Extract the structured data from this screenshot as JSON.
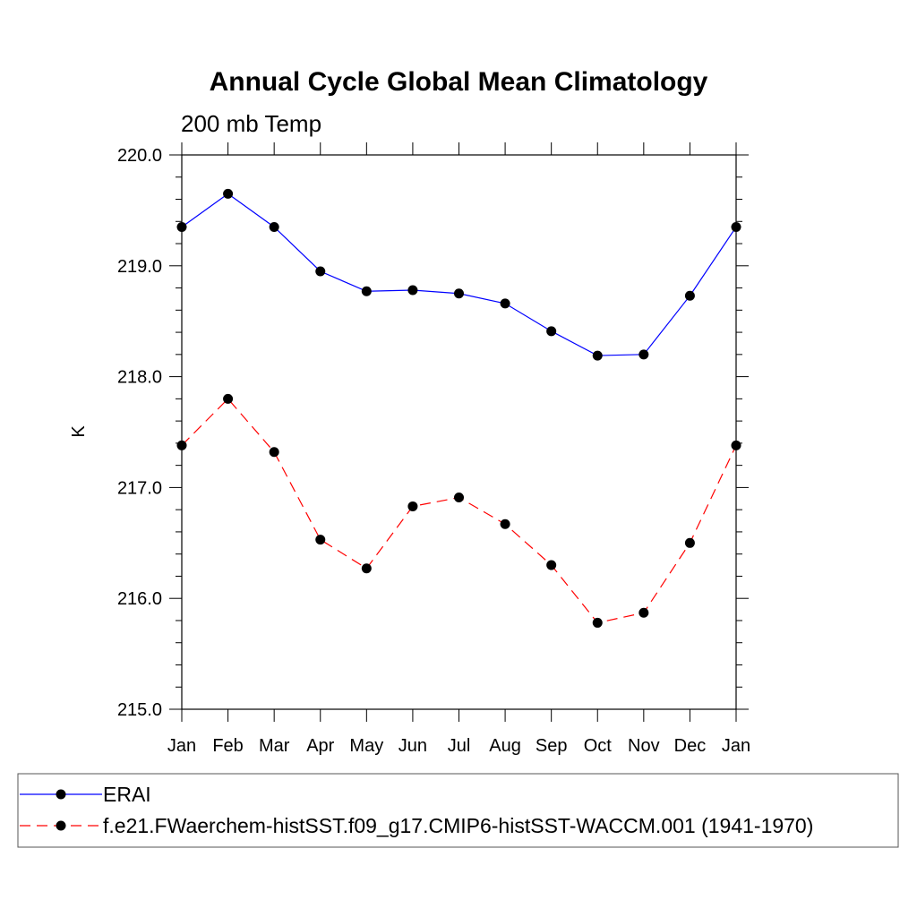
{
  "chart_data": {
    "type": "line",
    "title": "Annual Cycle Global Mean Climatology",
    "subtitle": "200 mb Temp",
    "ylabel": "K",
    "xlabel": "",
    "categories": [
      "Jan",
      "Feb",
      "Mar",
      "Apr",
      "May",
      "Jun",
      "Jul",
      "Aug",
      "Sep",
      "Oct",
      "Nov",
      "Dec",
      "Jan"
    ],
    "ylim": [
      215.0,
      220.0
    ],
    "yticks": [
      "215.0",
      "216.0",
      "217.0",
      "218.0",
      "219.0",
      "220.0"
    ],
    "grid": false,
    "legend_position": "bottom",
    "series": [
      {
        "name": "ERAI",
        "color": "#0000ff",
        "dash": "solid",
        "marker": "filled-circle",
        "values": [
          219.35,
          219.65,
          219.35,
          218.95,
          218.77,
          218.78,
          218.75,
          218.66,
          218.41,
          218.19,
          218.2,
          218.73,
          219.35
        ]
      },
      {
        "name": "f.e21.FWaerchem-histSST.f09_g17.CMIP6-histSST-WACCM.001 (1941-1970)",
        "color": "#ff0000",
        "dash": "dashed",
        "marker": "filled-circle",
        "values": [
          217.38,
          217.8,
          217.32,
          216.53,
          216.27,
          216.83,
          216.91,
          216.67,
          216.3,
          215.78,
          215.87,
          216.5,
          217.38
        ]
      }
    ]
  }
}
